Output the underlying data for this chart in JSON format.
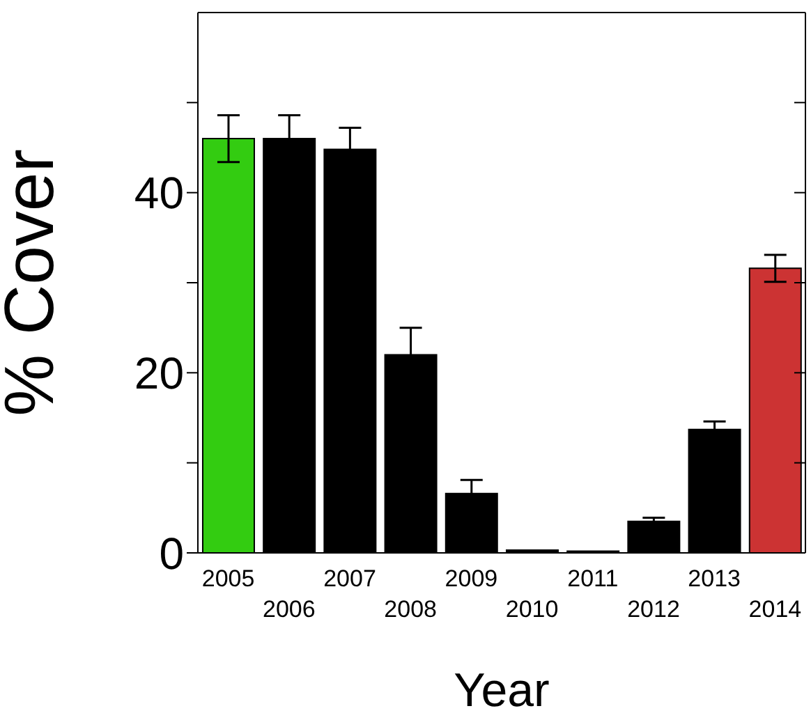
{
  "chart_data": {
    "type": "bar",
    "xlabel": "Year",
    "ylabel": "% Cover",
    "categories": [
      "2005",
      "2006",
      "2007",
      "2008",
      "2009",
      "2010",
      "2011",
      "2012",
      "2013",
      "2014"
    ],
    "values": [
      46,
      46,
      44.8,
      22,
      6.6,
      0.3,
      0.2,
      3.5,
      13.7,
      31.6
    ],
    "errors": [
      2.6,
      2.6,
      2.4,
      3,
      1.5,
      null,
      null,
      0.4,
      0.9,
      1.5
    ],
    "colors": [
      "#33cc11",
      "#000000",
      "#000000",
      "#000000",
      "#000000",
      "#000000",
      "#000000",
      "#000000",
      "#000000",
      "#cc3333"
    ],
    "ylim": [
      0,
      60
    ],
    "yticks": [
      0,
      {
        "value": 10,
        "label": null
      },
      20,
      {
        "value": 30,
        "label": null
      },
      40,
      {
        "value": 50,
        "label": null
      }
    ],
    "grid": false
  }
}
